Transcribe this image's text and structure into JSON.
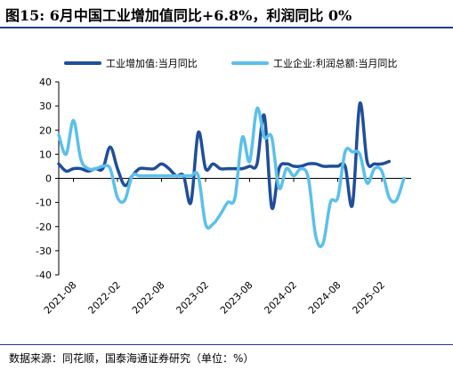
{
  "header": {
    "title": "图15:  6月中国工业增加值同比+6.8%，利润同比 0%"
  },
  "footer": {
    "source": "数据来源：同花顺，国泰海通证券研究（单位：%）"
  },
  "colors": {
    "series1": "#1f4e9a",
    "series2": "#5bc0eb",
    "rule": "#1f3c88",
    "axis": "#000000"
  },
  "chart_data": {
    "type": "line",
    "title": "",
    "xlabel": "",
    "ylabel": "",
    "ylim": [
      -40,
      40
    ],
    "yticks": [
      -40,
      -30,
      -20,
      -10,
      0,
      10,
      20,
      30,
      40
    ],
    "xticks": [
      "2021-08",
      "2022-02",
      "2022-08",
      "2023-02",
      "2023-08",
      "2024-02",
      "2024-08",
      "2025-02"
    ],
    "legend_position": "top",
    "grid": false,
    "x": [
      "2021-06",
      "2021-07",
      "2021-08",
      "2021-09",
      "2021-10",
      "2021-11",
      "2021-12",
      "2022-01",
      "2022-02",
      "2022-03",
      "2022-04",
      "2022-05",
      "2022-06",
      "2022-07",
      "2022-08",
      "2022-09",
      "2022-10",
      "2022-11",
      "2022-12",
      "2023-01",
      "2023-02",
      "2023-03",
      "2023-04",
      "2023-05",
      "2023-06",
      "2023-07",
      "2023-08",
      "2023-09",
      "2023-10",
      "2023-11",
      "2023-12",
      "2024-01",
      "2024-02",
      "2024-03",
      "2024-04",
      "2024-05",
      "2024-06",
      "2024-07",
      "2024-08",
      "2024-09",
      "2024-10",
      "2024-11",
      "2024-12",
      "2025-01",
      "2025-02",
      "2025-03",
      "2025-04",
      "2025-05",
      "2025-06"
    ],
    "series": [
      {
        "name": "工业增加值:当月同比",
        "color": "#1f4e9a",
        "values": [
          6,
          3,
          4,
          4,
          3,
          4,
          4,
          13,
          4,
          -3,
          1,
          4,
          4,
          4,
          6,
          4,
          1,
          1,
          -10,
          19,
          4,
          6,
          4,
          4,
          4,
          4,
          5,
          6,
          26,
          -12,
          4,
          6,
          5,
          5,
          6,
          6,
          5,
          5,
          5,
          5,
          -11,
          31,
          7,
          6,
          6,
          7,
          null,
          null,
          null
        ]
      },
      {
        "name": "工业企业:利润总额:当月同比",
        "color": "#5bc0eb",
        "values": [
          18,
          10,
          24,
          8,
          4,
          4,
          5,
          4,
          -8,
          -9,
          1,
          1,
          1,
          1,
          1,
          1,
          1,
          1,
          1,
          1,
          -19,
          -19,
          -15,
          -10,
          -8,
          17,
          7,
          29,
          17,
          17,
          -4,
          4,
          1,
          4,
          0,
          -24,
          -27,
          -10,
          -8,
          11,
          11,
          10,
          -2,
          4,
          3,
          -8,
          -9,
          0,
          null
        ]
      }
    ]
  }
}
